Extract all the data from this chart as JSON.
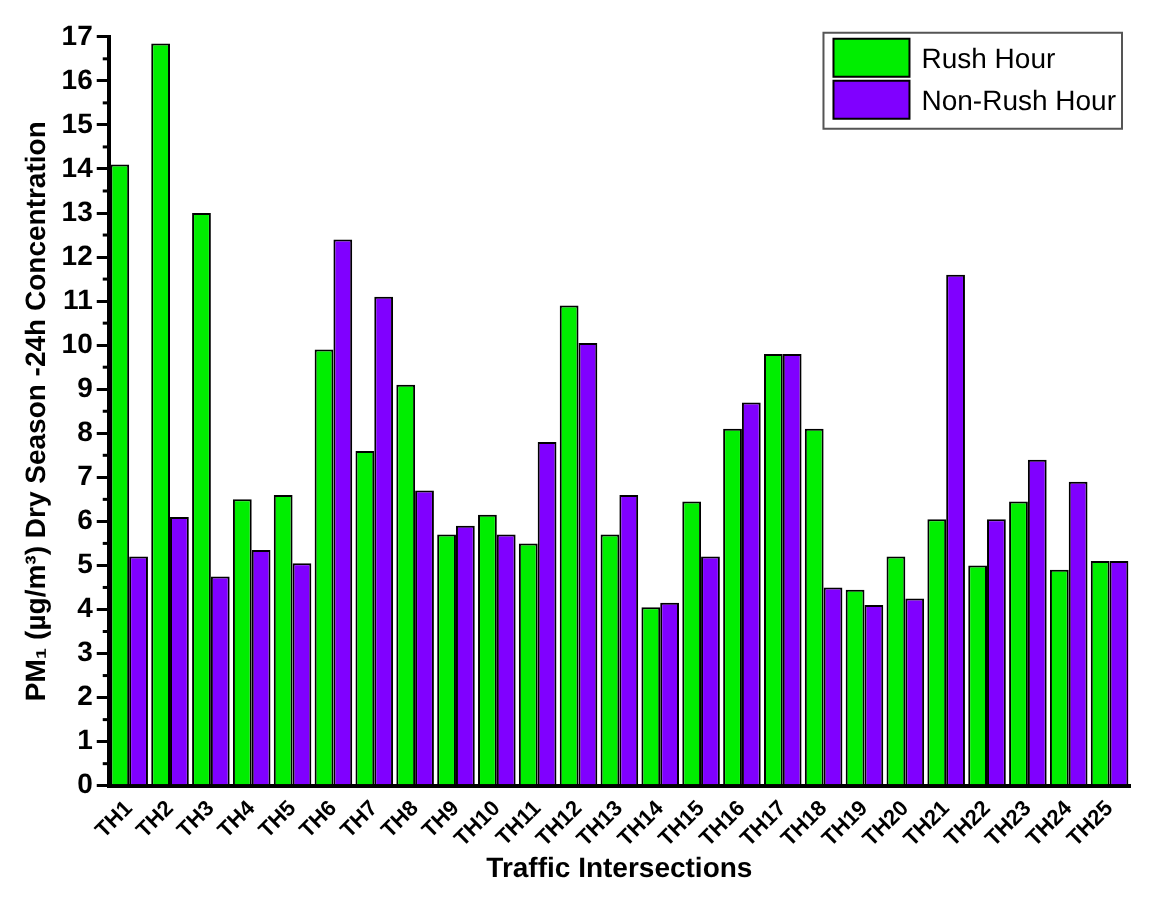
{
  "chart_data": {
    "type": "bar",
    "xlabel": "Traffic Intersections",
    "ylabel": "PM₁ (µg/m³) Dry Season -24h Concentration",
    "categories": [
      "TH1",
      "TH2",
      "TH3",
      "TH4",
      "TH5",
      "TH6",
      "TH7",
      "TH8",
      "TH9",
      "TH10",
      "TH11",
      "TH12",
      "TH13",
      "TH14",
      "TH15",
      "TH16",
      "TH17",
      "TH18",
      "TH19",
      "TH20",
      "TH21",
      "TH22",
      "TH23",
      "TH24",
      "TH25"
    ],
    "series": [
      {
        "name": "Rush Hour",
        "color": "#00ee00",
        "values": [
          14.1,
          16.85,
          13.0,
          6.5,
          6.6,
          9.9,
          7.6,
          9.1,
          5.7,
          6.15,
          5.5,
          10.9,
          5.7,
          4.05,
          6.45,
          8.1,
          9.8,
          8.1,
          4.45,
          5.2,
          6.05,
          5.0,
          6.45,
          4.9,
          5.1
        ]
      },
      {
        "name": "Non-Rush Hour",
        "color": "#8000ff",
        "values": [
          5.2,
          6.1,
          4.75,
          5.35,
          5.05,
          12.4,
          11.1,
          6.7,
          5.9,
          5.7,
          7.8,
          10.05,
          6.6,
          4.15,
          5.2,
          8.7,
          9.8,
          4.5,
          4.1,
          4.25,
          11.6,
          6.05,
          7.4,
          6.9,
          5.1
        ]
      }
    ],
    "ylim": [
      0,
      17
    ],
    "yticks": [
      0,
      1,
      2,
      3,
      4,
      5,
      6,
      7,
      8,
      9,
      10,
      11,
      12,
      13,
      14,
      15,
      16,
      17
    ],
    "grid": false,
    "legend": "top right"
  }
}
